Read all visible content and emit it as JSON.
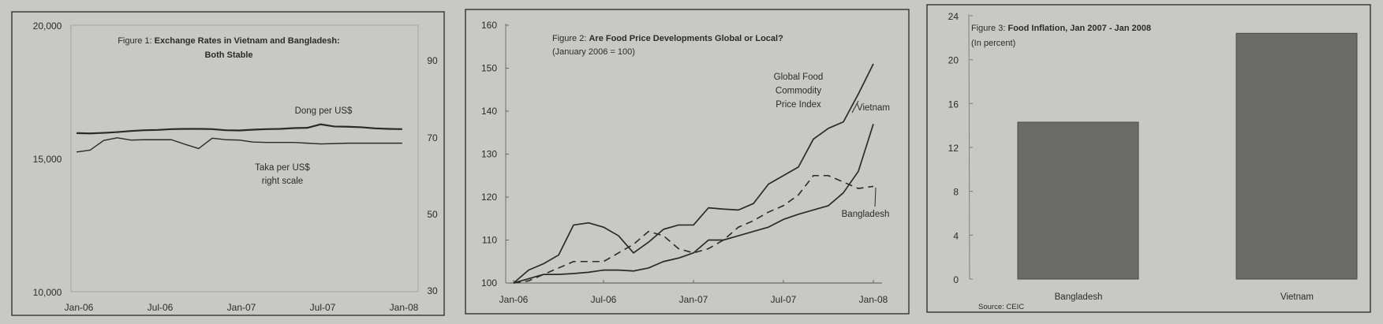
{
  "chart_data": [
    {
      "type": "line",
      "title_prefix": "Figure 1:",
      "title": "Exchange Rates in Vietnam and Bangladesh:",
      "title_line2": "Both Stable",
      "x_ticks": [
        "Jan-06",
        "Jul-06",
        "Jan-07",
        "Jul-07",
        "Jan-08"
      ],
      "y_left_ticks": [
        "20,000",
        "15,000",
        "10,000"
      ],
      "y_left_range": [
        10000,
        20000
      ],
      "y_right_ticks": [
        "90",
        "70",
        "50",
        "30"
      ],
      "y_right_range": [
        30,
        90
      ],
      "series": [
        {
          "name": "Dong per US$",
          "axis": "left",
          "values": [
            15950,
            15940,
            15960,
            15990,
            16030,
            16060,
            16070,
            16100,
            16110,
            16110,
            16100,
            16060,
            16050,
            16080,
            16100,
            16110,
            16140,
            16150,
            16280,
            16200,
            16190,
            16170,
            16130,
            16110,
            16100
          ]
        },
        {
          "name": "Taka per US$",
          "name_line2": "right scale",
          "axis": "right",
          "values": [
            66.3,
            66.8,
            69.3,
            70.0,
            69.4,
            69.5,
            69.5,
            69.5,
            68.3,
            67.2,
            69.9,
            69.5,
            69.4,
            68.9,
            68.8,
            68.8,
            68.8,
            68.6,
            68.4,
            68.5,
            68.6,
            68.6,
            68.6,
            68.6,
            68.6
          ]
        }
      ]
    },
    {
      "type": "line",
      "title_prefix": "Figure 2:",
      "title": "Are Food Price Developments Global or Local?",
      "subtitle": "(January 2006 = 100)",
      "x_ticks": [
        "Jan-06",
        "Jul-06",
        "Jan-07",
        "Jul-07",
        "Jan-08"
      ],
      "y_ticks": [
        "160",
        "150",
        "140",
        "130",
        "120",
        "110",
        "100"
      ],
      "ylim": [
        100,
        160
      ],
      "series": [
        {
          "name_lines": [
            "Global Food",
            "Commodity",
            "Price Index"
          ],
          "style": "solid",
          "values": [
            100,
            103,
            104.5,
            106.5,
            113.5,
            114,
            113,
            111,
            107,
            109.5,
            112.5,
            113.5,
            113.5,
            117.5,
            117.2,
            117,
            118.5,
            123,
            125,
            127,
            133.5,
            136,
            137.5,
            144,
            151
          ]
        },
        {
          "name": "Vietnam",
          "style": "solid",
          "values": [
            100,
            101,
            102,
            102,
            102.2,
            102.5,
            103,
            103,
            102.8,
            103.5,
            105,
            105.8,
            107,
            110,
            110,
            111,
            112,
            113,
            114.8,
            116,
            117,
            118,
            121,
            126,
            137
          ]
        },
        {
          "name": "Bangladesh",
          "style": "dashed",
          "values": [
            100,
            100.5,
            102,
            103.5,
            105,
            105,
            105,
            107,
            109,
            112,
            111,
            108,
            107,
            108,
            110,
            113,
            114.5,
            116.5,
            118,
            120.5,
            125,
            125,
            123.5,
            122,
            122.5
          ]
        }
      ]
    },
    {
      "type": "bar",
      "title_prefix": "Figure 3:",
      "title": "Food Inflation, Jan 2007 - Jan 2008",
      "subtitle": "(In percent)",
      "categories": [
        "Bangladesh",
        "Vietnam"
      ],
      "values": [
        14.3,
        22.4
      ],
      "y_ticks": [
        "24",
        "20",
        "16",
        "12",
        "8",
        "4",
        "0"
      ],
      "ylim": [
        0,
        24
      ],
      "source": "Source: CEIC",
      "bar_color": "#6b6b69"
    }
  ]
}
